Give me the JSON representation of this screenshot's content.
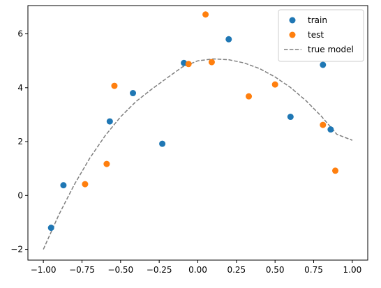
{
  "chart_data": {
    "type": "scatter",
    "title": "",
    "xlabel": "",
    "ylabel": "",
    "xlim": [
      -1.1,
      1.1
    ],
    "ylim": [
      -2.4,
      7.05
    ],
    "grid": false,
    "legend_position": "top-right",
    "x_ticks": [
      {
        "value": -1.0,
        "label": "−1.00"
      },
      {
        "value": -0.75,
        "label": "−0.75"
      },
      {
        "value": -0.5,
        "label": "−0.50"
      },
      {
        "value": -0.25,
        "label": "−0.25"
      },
      {
        "value": 0.0,
        "label": "0.00"
      },
      {
        "value": 0.25,
        "label": "0.25"
      },
      {
        "value": 0.5,
        "label": "0.50"
      },
      {
        "value": 0.75,
        "label": "0.75"
      },
      {
        "value": 1.0,
        "label": "1.00"
      }
    ],
    "y_ticks": [
      {
        "value": -2,
        "label": "−2"
      },
      {
        "value": 0,
        "label": "0"
      },
      {
        "value": 2,
        "label": "2"
      },
      {
        "value": 4,
        "label": "4"
      },
      {
        "value": 6,
        "label": "6"
      }
    ],
    "series": [
      {
        "name": "train",
        "kind": "scatter",
        "color": "#1f77b4",
        "points": [
          {
            "x": -0.95,
            "y": -1.2
          },
          {
            "x": -0.87,
            "y": 0.38
          },
          {
            "x": -0.57,
            "y": 2.75
          },
          {
            "x": -0.42,
            "y": 3.8
          },
          {
            "x": -0.23,
            "y": 1.92
          },
          {
            "x": -0.09,
            "y": 4.92
          },
          {
            "x": 0.2,
            "y": 5.8
          },
          {
            "x": 0.6,
            "y": 2.92
          },
          {
            "x": 0.81,
            "y": 4.85
          },
          {
            "x": 0.86,
            "y": 2.45
          }
        ]
      },
      {
        "name": "test",
        "kind": "scatter",
        "color": "#ff7f0e",
        "points": [
          {
            "x": -0.73,
            "y": 0.42
          },
          {
            "x": -0.59,
            "y": 1.17
          },
          {
            "x": -0.54,
            "y": 4.07
          },
          {
            "x": -0.06,
            "y": 4.88
          },
          {
            "x": 0.05,
            "y": 6.72
          },
          {
            "x": 0.09,
            "y": 4.95
          },
          {
            "x": 0.33,
            "y": 3.68
          },
          {
            "x": 0.5,
            "y": 4.12
          },
          {
            "x": 0.81,
            "y": 2.62
          },
          {
            "x": 0.89,
            "y": 0.92
          }
        ]
      },
      {
        "name": "true model",
        "kind": "line",
        "style": "dashed",
        "color": "#7f7f7f",
        "x": [
          -1.0,
          -0.9,
          -0.8,
          -0.7,
          -0.6,
          -0.5,
          -0.4,
          -0.3,
          -0.2,
          -0.1,
          0.0,
          0.1,
          0.2,
          0.3,
          0.4,
          0.5,
          0.6,
          0.7,
          0.8,
          0.9,
          1.0
        ],
        "y": [
          -2.0,
          -0.72,
          0.4,
          1.38,
          2.22,
          2.92,
          3.49,
          3.94,
          4.36,
          4.77,
          5.0,
          5.07,
          5.04,
          4.92,
          4.71,
          4.4,
          4.01,
          3.52,
          2.94,
          2.27,
          2.05
        ]
      }
    ],
    "legend": [
      {
        "label": "train",
        "type": "marker",
        "color": "#1f77b4"
      },
      {
        "label": "test",
        "type": "marker",
        "color": "#ff7f0e"
      },
      {
        "label": "true model",
        "type": "dashed-line",
        "color": "#7f7f7f"
      }
    ]
  }
}
